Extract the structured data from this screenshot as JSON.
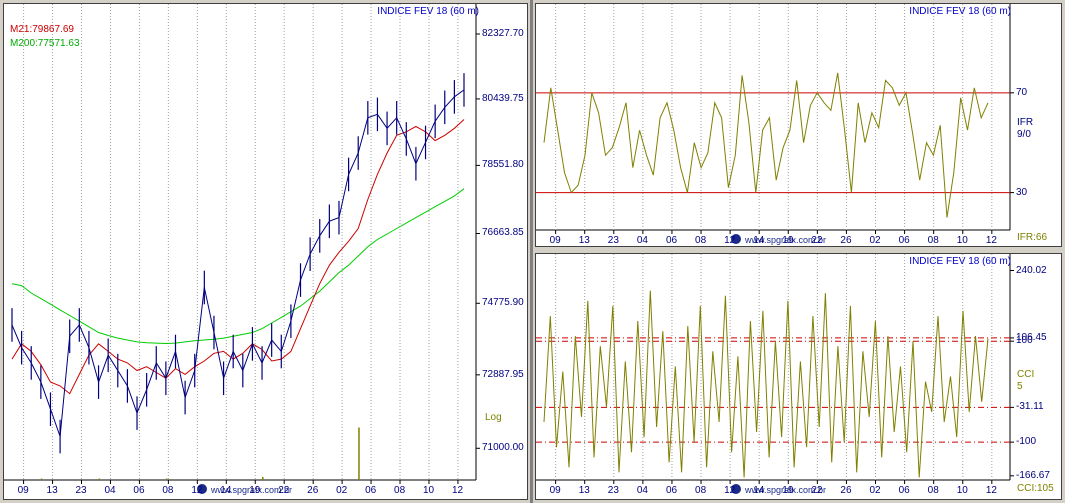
{
  "left_panel": {
    "title": "INDICE FEV 18 (60 m)",
    "legend": [
      "M21:79867.69",
      "M200:77571.63"
    ],
    "scale_label": "Log",
    "y_ticks": [
      "82327.70",
      "80439.75",
      "78551.80",
      "76663.85",
      "74775.90",
      "72887.95",
      "71000.00"
    ],
    "watermark": "www.spgrafx.com.br"
  },
  "ifr_panel": {
    "title": "INDICE FEV 18 (60 m)",
    "y_ticks": [
      "70",
      "30"
    ],
    "side_label": [
      "IFR",
      "9/0"
    ],
    "value_label": "IFR:66",
    "watermark": "www.spgrafx.com.br"
  },
  "cci_panel": {
    "title": "INDICE FEV 18 (60 m)",
    "y_ticks": [
      "240.02",
      "106.45",
      "100",
      "-31.11",
      "-100",
      "-166.67"
    ],
    "side_label": [
      "CCI",
      "5"
    ],
    "value_label": "CCI:105",
    "watermark": "www.spgrafx.com.br"
  },
  "x_ticks": [
    "09",
    "13",
    "23",
    "04",
    "06",
    "08",
    "12",
    "14",
    "19",
    "22",
    "26",
    "02",
    "06",
    "08",
    "10",
    "12"
  ],
  "colors": {
    "price": "#00007f",
    "m21": "#cc0000",
    "m200": "#00cc00",
    "oscillator": "#808000",
    "level": "#cc0000",
    "title": "#0000cc",
    "grid": "#a0a0a0"
  },
  "chart_data": [
    {
      "type": "line",
      "title": "INDICE FEV 18 (60 m)",
      "y_scale": "log",
      "ylim": [
        70200,
        82800
      ],
      "x_ticks": [
        "09",
        "13",
        "23",
        "04",
        "06",
        "08",
        "12",
        "14",
        "19",
        "22",
        "26",
        "02",
        "06",
        "08",
        "10",
        "12"
      ],
      "series": [
        {
          "name": "M21",
          "values": [
            73300,
            73700,
            73500,
            73150,
            72700,
            72600,
            72400,
            72900,
            73400,
            73700,
            73500,
            73300,
            73200,
            73000,
            73100,
            72950,
            72800,
            73050,
            72900,
            73100,
            73250,
            73450,
            73500,
            73300,
            73450,
            73700,
            73550,
            73250,
            73300,
            73500,
            74100,
            74700,
            75300,
            75800,
            76150,
            76450,
            76800,
            77600,
            78300,
            78900,
            79400,
            79500,
            79650,
            79500,
            79250,
            79400,
            79600,
            79850
          ]
        },
        {
          "name": "M200",
          "values": [
            75300,
            75250,
            75050,
            74900,
            74750,
            74600,
            74450,
            74300,
            74150,
            74000,
            73920,
            73850,
            73800,
            73750,
            73730,
            73720,
            73710,
            73720,
            73750,
            73780,
            73800,
            73820,
            73850,
            73900,
            73950,
            74000,
            74100,
            74250,
            74400,
            74550,
            74700,
            74900,
            75100,
            75350,
            75600,
            75800,
            76050,
            76300,
            76500,
            76650,
            76800,
            76950,
            77100,
            77250,
            77400,
            77550,
            77700,
            77900
          ]
        },
        {
          "name": "INDICE",
          "values": [
            74200,
            73600,
            73200,
            72700,
            72000,
            71300,
            73900,
            74200,
            73600,
            72700,
            73400,
            73000,
            72600,
            71900,
            72500,
            73200,
            72800,
            73500,
            72300,
            73000,
            75200,
            74000,
            72800,
            73500,
            73000,
            73700,
            73200,
            73800,
            73500,
            74300,
            75400,
            76100,
            76600,
            77000,
            77100,
            78300,
            78900,
            79900,
            80000,
            79600,
            79900,
            79300,
            78600,
            79200,
            79800,
            80200,
            80500,
            80700
          ]
        }
      ],
      "volume": [
        0,
        0,
        0,
        1,
        0,
        0,
        0,
        0,
        0,
        1,
        0,
        0,
        0,
        0,
        0,
        0,
        1,
        0,
        0,
        0,
        0,
        0,
        0,
        0,
        0,
        0,
        2,
        0,
        0,
        0,
        0,
        0,
        0,
        0,
        0,
        0,
        35,
        0,
        0,
        0,
        0,
        0,
        0,
        0,
        0,
        0,
        0,
        0
      ]
    },
    {
      "type": "line",
      "title": "INDICE FEV 18 (60 m)",
      "ylim": [
        15,
        100
      ],
      "levels": [
        70,
        30
      ],
      "series": [
        {
          "name": "IFR",
          "values": [
            50,
            72,
            55,
            38,
            30,
            33,
            45,
            70,
            62,
            45,
            48,
            56,
            66,
            40,
            55,
            45,
            37,
            60,
            66,
            55,
            40,
            30,
            50,
            40,
            46,
            66,
            60,
            32,
            45,
            77,
            58,
            30,
            55,
            60,
            35,
            48,
            55,
            75,
            50,
            65,
            70,
            66,
            63,
            78,
            55,
            30,
            66,
            50,
            62,
            56,
            75,
            72,
            65,
            70,
            53,
            35,
            50,
            45,
            57,
            20,
            38,
            68,
            55,
            72,
            60,
            66
          ]
        }
      ]
    },
    {
      "type": "line",
      "title": "INDICE FEV 18 (60 m)",
      "ylim": [
        -175,
        245
      ],
      "levels": [
        106.45,
        100,
        -31.11,
        -100
      ],
      "series": [
        {
          "name": "CCI",
          "values": [
            -60,
            150,
            -110,
            40,
            -150,
            110,
            -50,
            180,
            -130,
            90,
            -30,
            170,
            -160,
            60,
            -120,
            140,
            -90,
            200,
            -70,
            120,
            -140,
            50,
            -160,
            130,
            -100,
            170,
            -150,
            80,
            -60,
            190,
            -120,
            70,
            -170,
            140,
            -80,
            160,
            -130,
            100,
            -90,
            180,
            -150,
            60,
            -110,
            150,
            -70,
            195,
            -140,
            90,
            -100,
            170,
            -160,
            80,
            -50,
            140,
            -130,
            110,
            -80,
            50,
            -120,
            100,
            -170,
            20,
            -40,
            150,
            -60,
            30,
            -90,
            160,
            -40,
            110,
            -20,
            105
          ]
        }
      ]
    }
  ]
}
